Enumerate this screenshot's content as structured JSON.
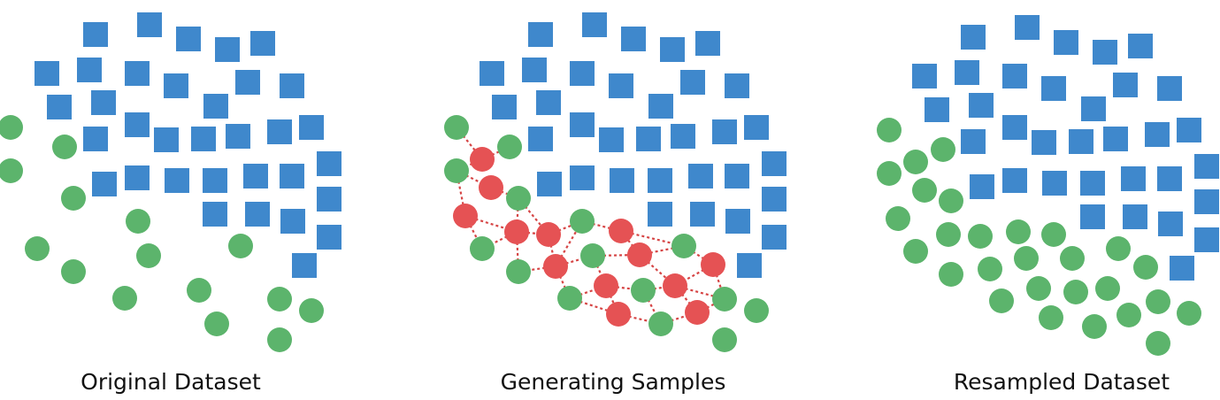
{
  "colors": {
    "majority": "#3f88cc",
    "minority": "#5cb46c",
    "synthetic": "#e55254",
    "link": "#d64545",
    "caption": "#111111"
  },
  "panels": [
    {
      "caption": "Original Dataset"
    },
    {
      "caption": "Generating Samples"
    },
    {
      "caption": "Resampled Dataset"
    }
  ]
}
